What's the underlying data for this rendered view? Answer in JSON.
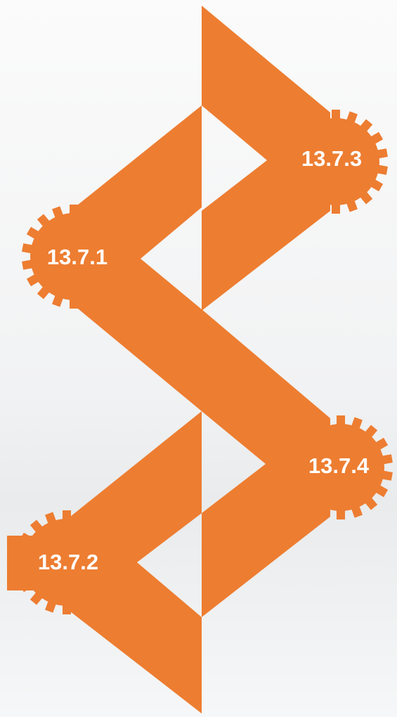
{
  "nodes": [
    {
      "label": "13.7.1"
    },
    {
      "label": "13.7.2"
    },
    {
      "label": "13.7.3"
    },
    {
      "label": "13.7.4"
    }
  ]
}
